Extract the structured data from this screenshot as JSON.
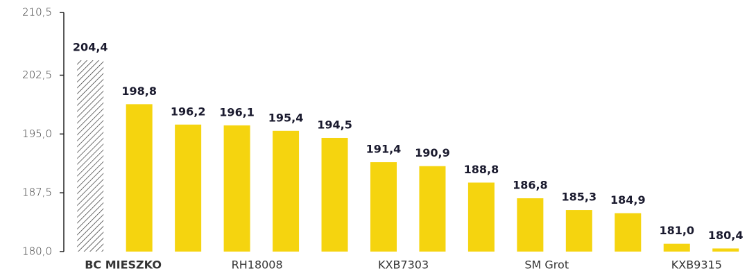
{
  "chart_data": {
    "type": "bar",
    "categories": [
      "BC MIESZKO",
      null,
      null,
      "RH18008",
      null,
      null,
      "KXB7303",
      null,
      null,
      "SM Grot",
      null,
      null,
      "KXB9315",
      null
    ],
    "values": [
      204.4,
      198.8,
      196.2,
      196.1,
      195.4,
      194.5,
      191.4,
      190.9,
      188.8,
      186.8,
      185.3,
      184.9,
      181.0,
      180.4
    ],
    "value_labels": [
      "204,4",
      "198,8",
      "196,2",
      "196,1",
      "195,4",
      "194,5",
      "191,4",
      "190,9",
      "188,8",
      "186,8",
      "185,3",
      "184,9",
      "181,0",
      "180,4"
    ],
    "color": "#f5d40f",
    "hatched_index": 0,
    "ylim": [
      180,
      210.5
    ],
    "yticks": [
      {
        "value": 180,
        "label": "180,0"
      },
      {
        "value": 187.5,
        "label": "187,5"
      },
      {
        "value": 195,
        "label": "195,0"
      },
      {
        "value": 202.5,
        "label": "202,5"
      },
      {
        "value": 210.5,
        "label": "210,5"
      }
    ],
    "grid": false
  }
}
